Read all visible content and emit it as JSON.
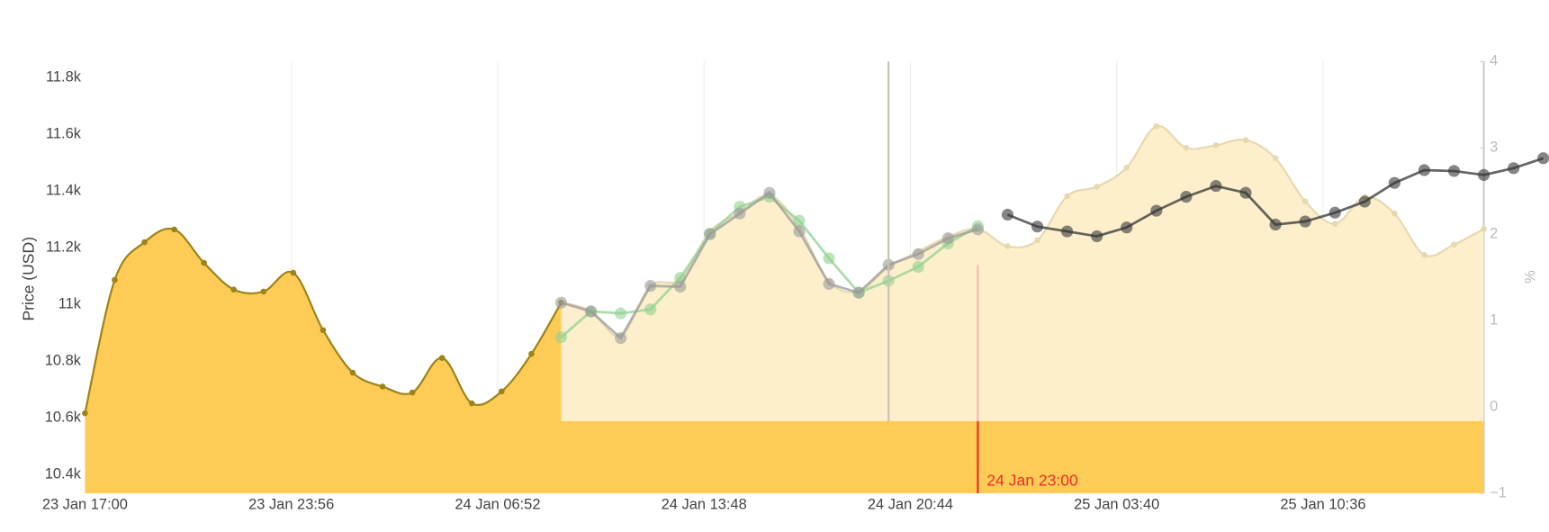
{
  "chart_data": {
    "type": "line",
    "y_label": "Price (USD)",
    "y2_label": "%",
    "xlim": [
      "23 Jan 17:00",
      "25 Jan 16:00"
    ],
    "xticks": [
      "23 Jan 17:00",
      "23 Jan 23:56",
      "24 Jan 06:52",
      "24 Jan 13:48",
      "24 Jan 20:44",
      "25 Jan 03:40",
      "25 Jan 10:36"
    ],
    "ylim": [
      10334,
      11856
    ],
    "yticks": [
      {
        "value": 10400,
        "label": "10.4k"
      },
      {
        "value": 10600,
        "label": "10.6k"
      },
      {
        "value": 10800,
        "label": "10.8k"
      },
      {
        "value": 11000,
        "label": "11k"
      },
      {
        "value": 11200,
        "label": "11.2k"
      },
      {
        "value": 11400,
        "label": "11.4k"
      },
      {
        "value": 11600,
        "label": "11.6k"
      },
      {
        "value": 11800,
        "label": "11.8k"
      }
    ],
    "y2lim": [
      -1,
      4
    ],
    "y2ticks": [
      {
        "value": -1,
        "label": "−1"
      },
      0,
      1,
      2,
      3,
      4
    ],
    "grid": true,
    "vline": "24 Jan 20:00",
    "annotation": {
      "x": "24 Jan 23:00",
      "text": "24 Jan 23:00",
      "color": "#e8302a"
    },
    "series": [
      {
        "axis": "y2",
        "color": "#e6d9b0",
        "fill": "#fdefcc",
        "smooth": true,
        "start": "24 Jan 09:00",
        "values": [
          1.21,
          1.11,
          0.82,
          1.4,
          1.48,
          2.03,
          2.25,
          2.45,
          2.08,
          1.45,
          1.34,
          1.62,
          1.8,
          1.97,
          2.06,
          1.86,
          1.93,
          2.44,
          2.55,
          2.77,
          3.25,
          3.0,
          3.03,
          3.09,
          2.88,
          2.38,
          2.12,
          2.43,
          2.24,
          1.76,
          1.88,
          2.06
        ]
      },
      {
        "axis": "y",
        "color": "#9c8418",
        "fill": "#ffcb57",
        "smooth": true,
        "start": "23 Jan 17:00",
        "values": [
          10616,
          11086,
          11219,
          11264,
          11146,
          11052,
          11045,
          11111,
          10909,
          10759,
          10710,
          10689,
          10811,
          10651,
          10693,
          10825,
          11006
        ]
      },
      {
        "axis": "y",
        "color": "#8fd18f",
        "start": "24 Jan 09:00",
        "values": [
          10884,
          10975,
          10968,
          10982,
          11093,
          11250,
          11344,
          11379,
          11295,
          11162,
          11041,
          11083,
          11132,
          11215,
          11275
        ]
      },
      {
        "axis": "y",
        "color": "#9a9a9a",
        "start": "24 Jan 09:00",
        "values": [
          11006,
          10975,
          10881,
          11065,
          11062,
          11247,
          11320,
          11393,
          11257,
          11072,
          11041,
          11139,
          11177,
          11233,
          11264
        ]
      },
      {
        "axis": "y",
        "color": "#333333",
        "start": "25 Jan 00:00",
        "values": [
          11316,
          11274,
          11257,
          11240,
          11271,
          11330,
          11379,
          11417,
          11393,
          11281,
          11292,
          11323,
          11362,
          11428,
          11473,
          11470,
          11456,
          11480,
          11515
        ]
      }
    ]
  }
}
